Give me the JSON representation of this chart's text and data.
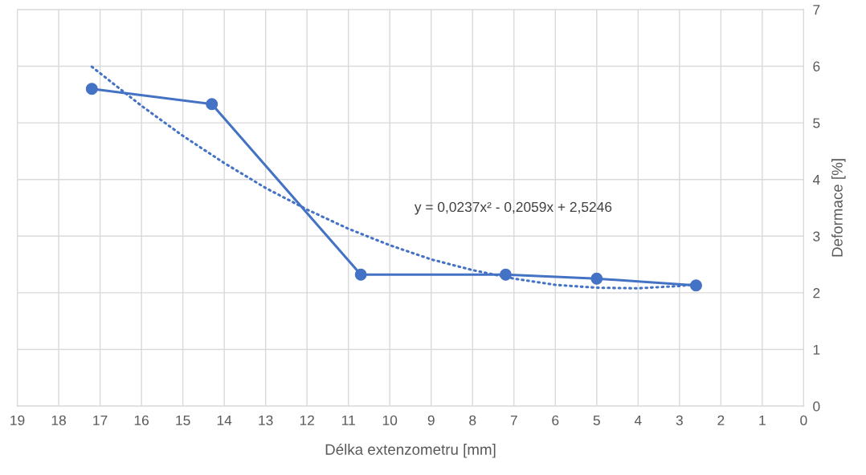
{
  "chart_data": {
    "type": "line",
    "xlabel": "Délka extenzometru [mm]",
    "ylabel": "Deformace [%]",
    "series": [
      {
        "color": "#4472c4",
        "marker": "circle",
        "line_style": "solid",
        "x": [
          17.2,
          14.3,
          10.7,
          7.2,
          5.0,
          2.6
        ],
        "values": [
          5.6,
          5.33,
          2.32,
          2.32,
          2.25,
          2.13
        ]
      },
      {
        "color": "#4472c4",
        "marker": "none",
        "line_style": "dotted",
        "x": [
          17.2,
          16,
          15,
          14,
          13,
          12,
          11,
          10,
          9,
          8,
          7,
          6,
          5,
          4,
          3,
          2.6
        ],
        "values": [
          5.99,
          5.3,
          4.77,
          4.29,
          3.85,
          3.47,
          3.13,
          2.84,
          2.59,
          2.4,
          2.25,
          2.14,
          2.09,
          2.08,
          2.12,
          2.15
        ]
      }
    ],
    "annotations": [
      "y = 0,0237x² - 0,2059x + 2,5246"
    ],
    "xlim": [
      19,
      0
    ],
    "xticks": [
      19,
      18,
      17,
      16,
      15,
      14,
      13,
      12,
      11,
      10,
      9,
      8,
      7,
      6,
      5,
      4,
      3,
      2,
      1,
      0
    ],
    "ylim": [
      0,
      7
    ],
    "yticks": [
      0,
      1,
      2,
      3,
      4,
      5,
      6,
      7
    ],
    "grid": true,
    "legend": false
  }
}
